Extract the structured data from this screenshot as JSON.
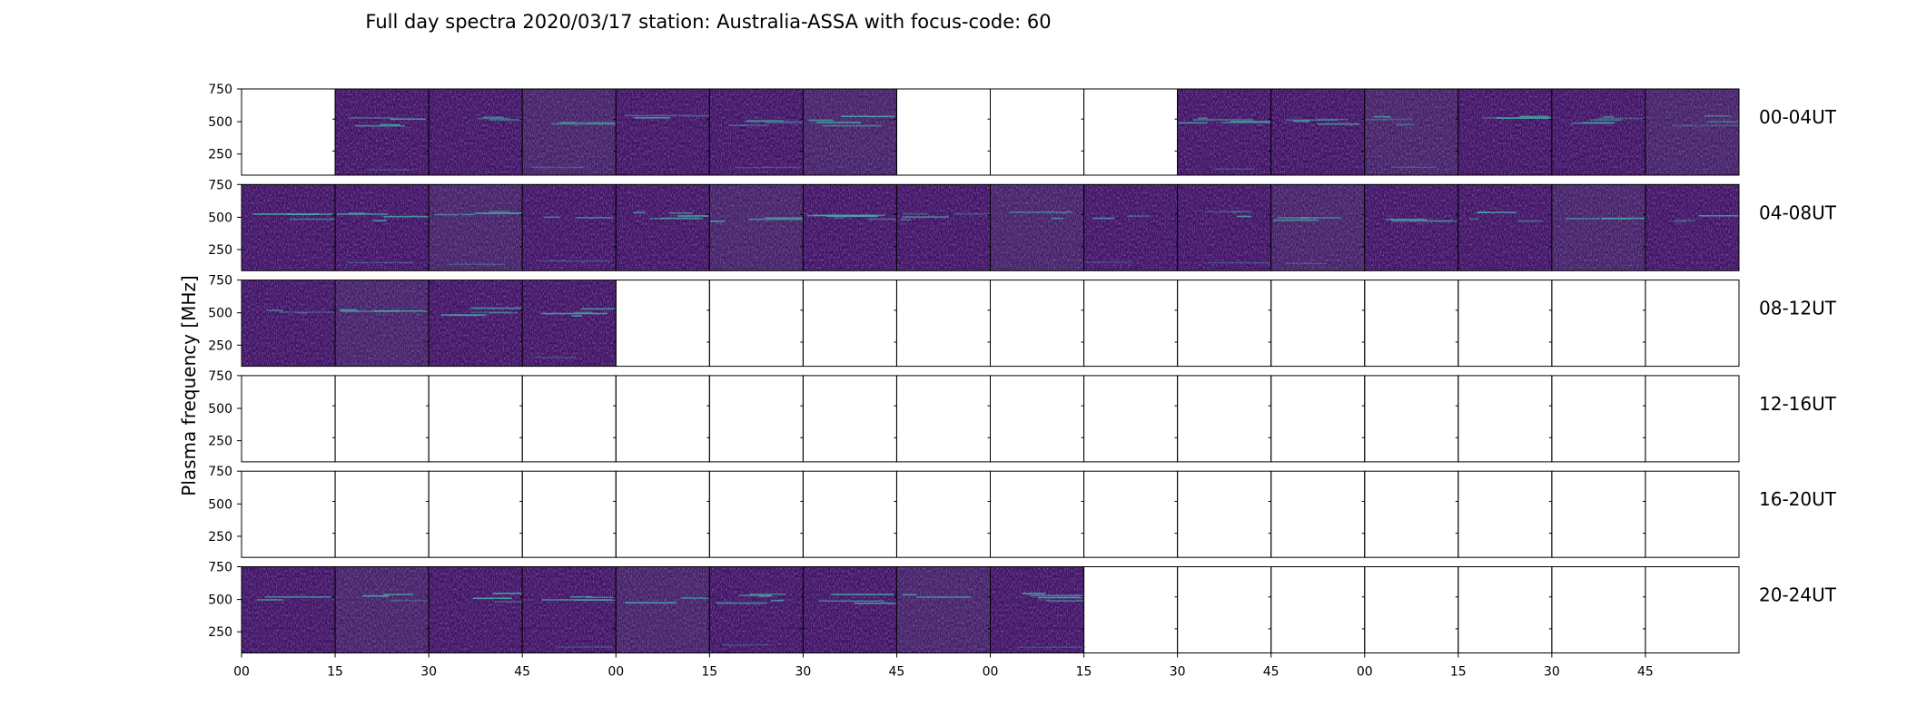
{
  "chart_data": {
    "type": "heatmap",
    "title": "Full day spectra 2020/03/17 station: Australia-ASSA with focus-code: 60",
    "ylabel": "Plasma frequency [MHz]",
    "y_ticks": [
      "750",
      "500",
      "250"
    ],
    "x_ticks": [
      "00",
      "15",
      "30",
      "45",
      "00",
      "15",
      "30",
      "45",
      "00",
      "15",
      "30",
      "45",
      "00",
      "15",
      "30",
      "45"
    ],
    "colors": {
      "spectrum": "#3f1163",
      "spectrum_light": "#432065",
      "line": "#46b3a8",
      "frame": "#000000"
    },
    "rows": [
      {
        "label": "00-04UT",
        "filled": [
          0,
          1,
          1,
          1,
          1,
          1,
          1,
          0,
          0,
          0,
          1,
          1,
          1,
          1,
          1,
          1
        ]
      },
      {
        "label": "04-08UT",
        "filled": [
          1,
          1,
          1,
          1,
          1,
          1,
          1,
          1,
          1,
          1,
          1,
          1,
          1,
          1,
          1,
          1
        ]
      },
      {
        "label": "08-12UT",
        "filled": [
          1,
          1,
          1,
          1,
          0,
          0,
          0,
          0,
          0,
          0,
          0,
          0,
          0,
          0,
          0,
          0
        ]
      },
      {
        "label": "12-16UT",
        "filled": [
          0,
          0,
          0,
          0,
          0,
          0,
          0,
          0,
          0,
          0,
          0,
          0,
          0,
          0,
          0,
          0
        ]
      },
      {
        "label": "16-20UT",
        "filled": [
          0,
          0,
          0,
          0,
          0,
          0,
          0,
          0,
          0,
          0,
          0,
          0,
          0,
          0,
          0,
          0
        ]
      },
      {
        "label": "20-24UT",
        "filled": [
          1,
          1,
          1,
          1,
          1,
          1,
          1,
          1,
          1,
          0,
          0,
          0,
          0,
          0,
          0,
          0
        ]
      }
    ]
  }
}
